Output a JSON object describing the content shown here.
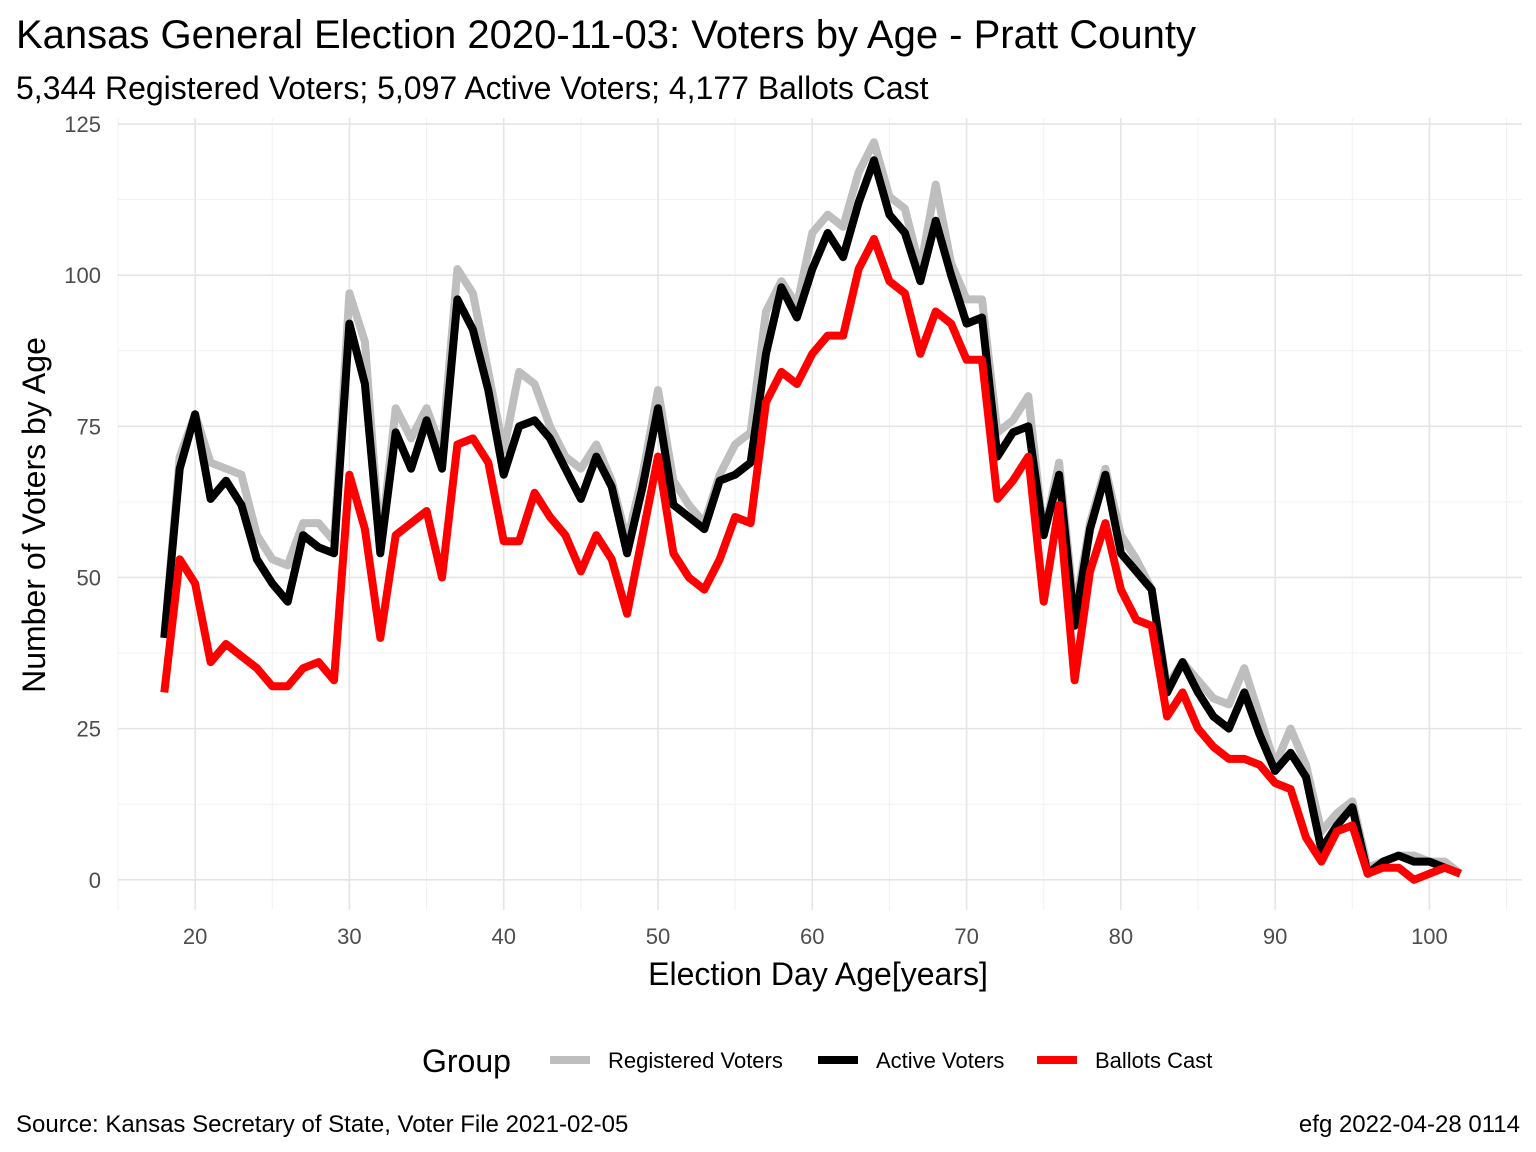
{
  "chart_data": {
    "type": "line",
    "title": "Kansas General Election 2020-11-03:  Voters by Age - Pratt County",
    "subtitle": "5,344 Registered Voters; 5,097 Active Voters; 4,177 Ballots Cast",
    "xlabel": "Election Day Age[years]",
    "ylabel": "Number of Voters by Age",
    "xlim": [
      15,
      106
    ],
    "ylim": [
      -5,
      126
    ],
    "x_ticks": [
      20,
      30,
      40,
      50,
      60,
      70,
      80,
      90,
      100
    ],
    "y_ticks": [
      0,
      25,
      50,
      75,
      100,
      125
    ],
    "grid": true,
    "legend_title": "Group",
    "legend_position": "bottom",
    "caption_left": "Source:  Kansas Secretary of State, Voter File  2021-02-05",
    "caption_right": "efg 2022-04-28 0114",
    "x": [
      18,
      19,
      20,
      21,
      22,
      23,
      24,
      25,
      26,
      27,
      28,
      29,
      30,
      31,
      32,
      33,
      34,
      35,
      36,
      37,
      38,
      39,
      40,
      41,
      42,
      43,
      44,
      45,
      46,
      47,
      48,
      49,
      50,
      51,
      52,
      53,
      54,
      55,
      56,
      57,
      58,
      59,
      60,
      61,
      62,
      63,
      64,
      65,
      66,
      67,
      68,
      69,
      70,
      71,
      72,
      73,
      74,
      75,
      76,
      77,
      78,
      79,
      80,
      81,
      82,
      83,
      84,
      85,
      86,
      87,
      88,
      89,
      90,
      91,
      92,
      93,
      94,
      95,
      96,
      97,
      98,
      99,
      100,
      101,
      102
    ],
    "series": [
      {
        "name": "Registered Voters",
        "color": "#bebebe",
        "values": [
          40,
          70,
          77,
          69,
          68,
          67,
          57,
          53,
          52,
          59,
          59,
          56,
          97,
          89,
          55,
          78,
          73,
          78,
          71,
          101,
          97,
          84,
          71,
          84,
          82,
          75,
          70,
          68,
          72,
          66,
          56,
          67,
          81,
          66,
          62,
          59,
          67,
          72,
          74,
          94,
          99,
          95,
          107,
          110,
          108,
          117,
          122,
          113,
          111,
          101,
          115,
          102,
          96,
          96,
          74,
          76,
          80,
          57,
          69,
          44,
          59,
          68,
          57,
          53,
          48,
          32,
          36,
          33,
          30,
          29,
          35,
          27,
          19,
          25,
          19,
          8,
          11,
          13,
          2,
          3,
          4,
          4,
          3,
          3,
          1
        ]
      },
      {
        "name": "Active Voters",
        "color": "#000000",
        "values": [
          40,
          68,
          77,
          63,
          66,
          62,
          53,
          49,
          46,
          57,
          55,
          54,
          92,
          82,
          54,
          74,
          68,
          76,
          68,
          96,
          91,
          81,
          67,
          75,
          76,
          73,
          68,
          63,
          70,
          65,
          54,
          65,
          78,
          62,
          60,
          58,
          66,
          67,
          69,
          87,
          98,
          93,
          101,
          107,
          103,
          112,
          119,
          110,
          107,
          99,
          109,
          100,
          92,
          93,
          70,
          74,
          75,
          57,
          67,
          42,
          58,
          67,
          54,
          51,
          48,
          31,
          36,
          31,
          27,
          25,
          31,
          24,
          18,
          21,
          17,
          5,
          9,
          12,
          1,
          3,
          4,
          3,
          3,
          2,
          1
        ]
      },
      {
        "name": "Ballots Cast",
        "color": "#ff0000",
        "values": [
          31,
          53,
          49,
          36,
          39,
          37,
          35,
          32,
          32,
          35,
          36,
          33,
          67,
          58,
          40,
          57,
          59,
          61,
          50,
          72,
          73,
          69,
          56,
          56,
          64,
          60,
          57,
          51,
          57,
          53,
          44,
          57,
          70,
          54,
          50,
          48,
          53,
          60,
          59,
          79,
          84,
          82,
          87,
          90,
          90,
          101,
          106,
          99,
          97,
          87,
          94,
          92,
          86,
          86,
          63,
          66,
          70,
          46,
          62,
          33,
          51,
          59,
          48,
          43,
          42,
          27,
          31,
          25,
          22,
          20,
          20,
          19,
          16,
          15,
          7,
          3,
          8,
          9,
          1,
          2,
          2,
          0,
          1,
          2,
          1
        ]
      }
    ]
  }
}
